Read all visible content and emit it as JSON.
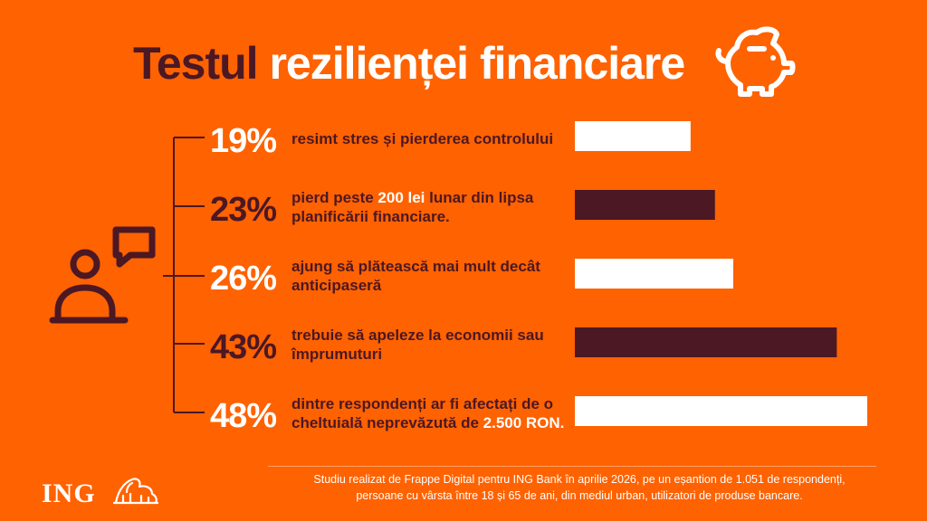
{
  "title": {
    "part1": "Testul",
    "part2": "rezilienței financiare"
  },
  "chart_data": {
    "type": "bar",
    "orientation": "horizontal",
    "categories": [
      "resimt stres și pierderea controlului",
      "pierd peste 200 lei lunar din lipsa planificării financiare.",
      "ajung să plătească mai mult decât anticipaseră",
      "trebuie să apeleze la economii sau împrumuturi",
      "dintre respondenți ar fi afectați de o cheltuială neprevăzută de 2.500 RON."
    ],
    "values": [
      19,
      23,
      26,
      43,
      48
    ],
    "value_labels": [
      "19%",
      "23%",
      "26%",
      "43%",
      "48%"
    ],
    "unit": "%",
    "xlim": [
      0,
      48
    ],
    "bar_colors": [
      "#ffffff",
      "#4b1824",
      "#ffffff",
      "#4b1824",
      "#ffffff"
    ],
    "label_colors": [
      "#ffffff",
      "#4b1824",
      "#ffffff",
      "#4b1824",
      "#ffffff"
    ]
  },
  "rows": [
    {
      "parts": [
        {
          "text": "resimt stres și pierderea controlului"
        }
      ]
    },
    {
      "parts": [
        {
          "text": "pierd peste "
        },
        {
          "text": "200 lei",
          "hl": true
        },
        {
          "text": " lunar din lipsa planificării financiare."
        }
      ]
    },
    {
      "parts": [
        {
          "text": "ajung să plătească mai mult decât anticipaseră"
        }
      ]
    },
    {
      "parts": [
        {
          "text": "trebuie să apeleze la economii sau împrumuturi"
        }
      ]
    },
    {
      "parts": [
        {
          "text": "dintre respondenți ar fi afectați de o cheltuială neprevăzută de "
        },
        {
          "text": "2.500 RON.",
          "hl": true
        }
      ]
    }
  ],
  "footnote": {
    "line1": "Studiu realizat de Frappe Digital pentru ING Bank în aprilie 2026, pe un eșantion de 1.051 de respondenți,",
    "line2": "persoane cu vârsta între 18 și 65 de ani, din mediul urban, utilizatori de produse bancare."
  },
  "brand": {
    "name": "ING"
  },
  "icons": {
    "title": "piggy-bank-icon",
    "left": "person-speech-icon",
    "logo": "lion-icon"
  },
  "colors": {
    "background": "#ff6200",
    "dark": "#4b1824",
    "light": "#ffffff"
  }
}
